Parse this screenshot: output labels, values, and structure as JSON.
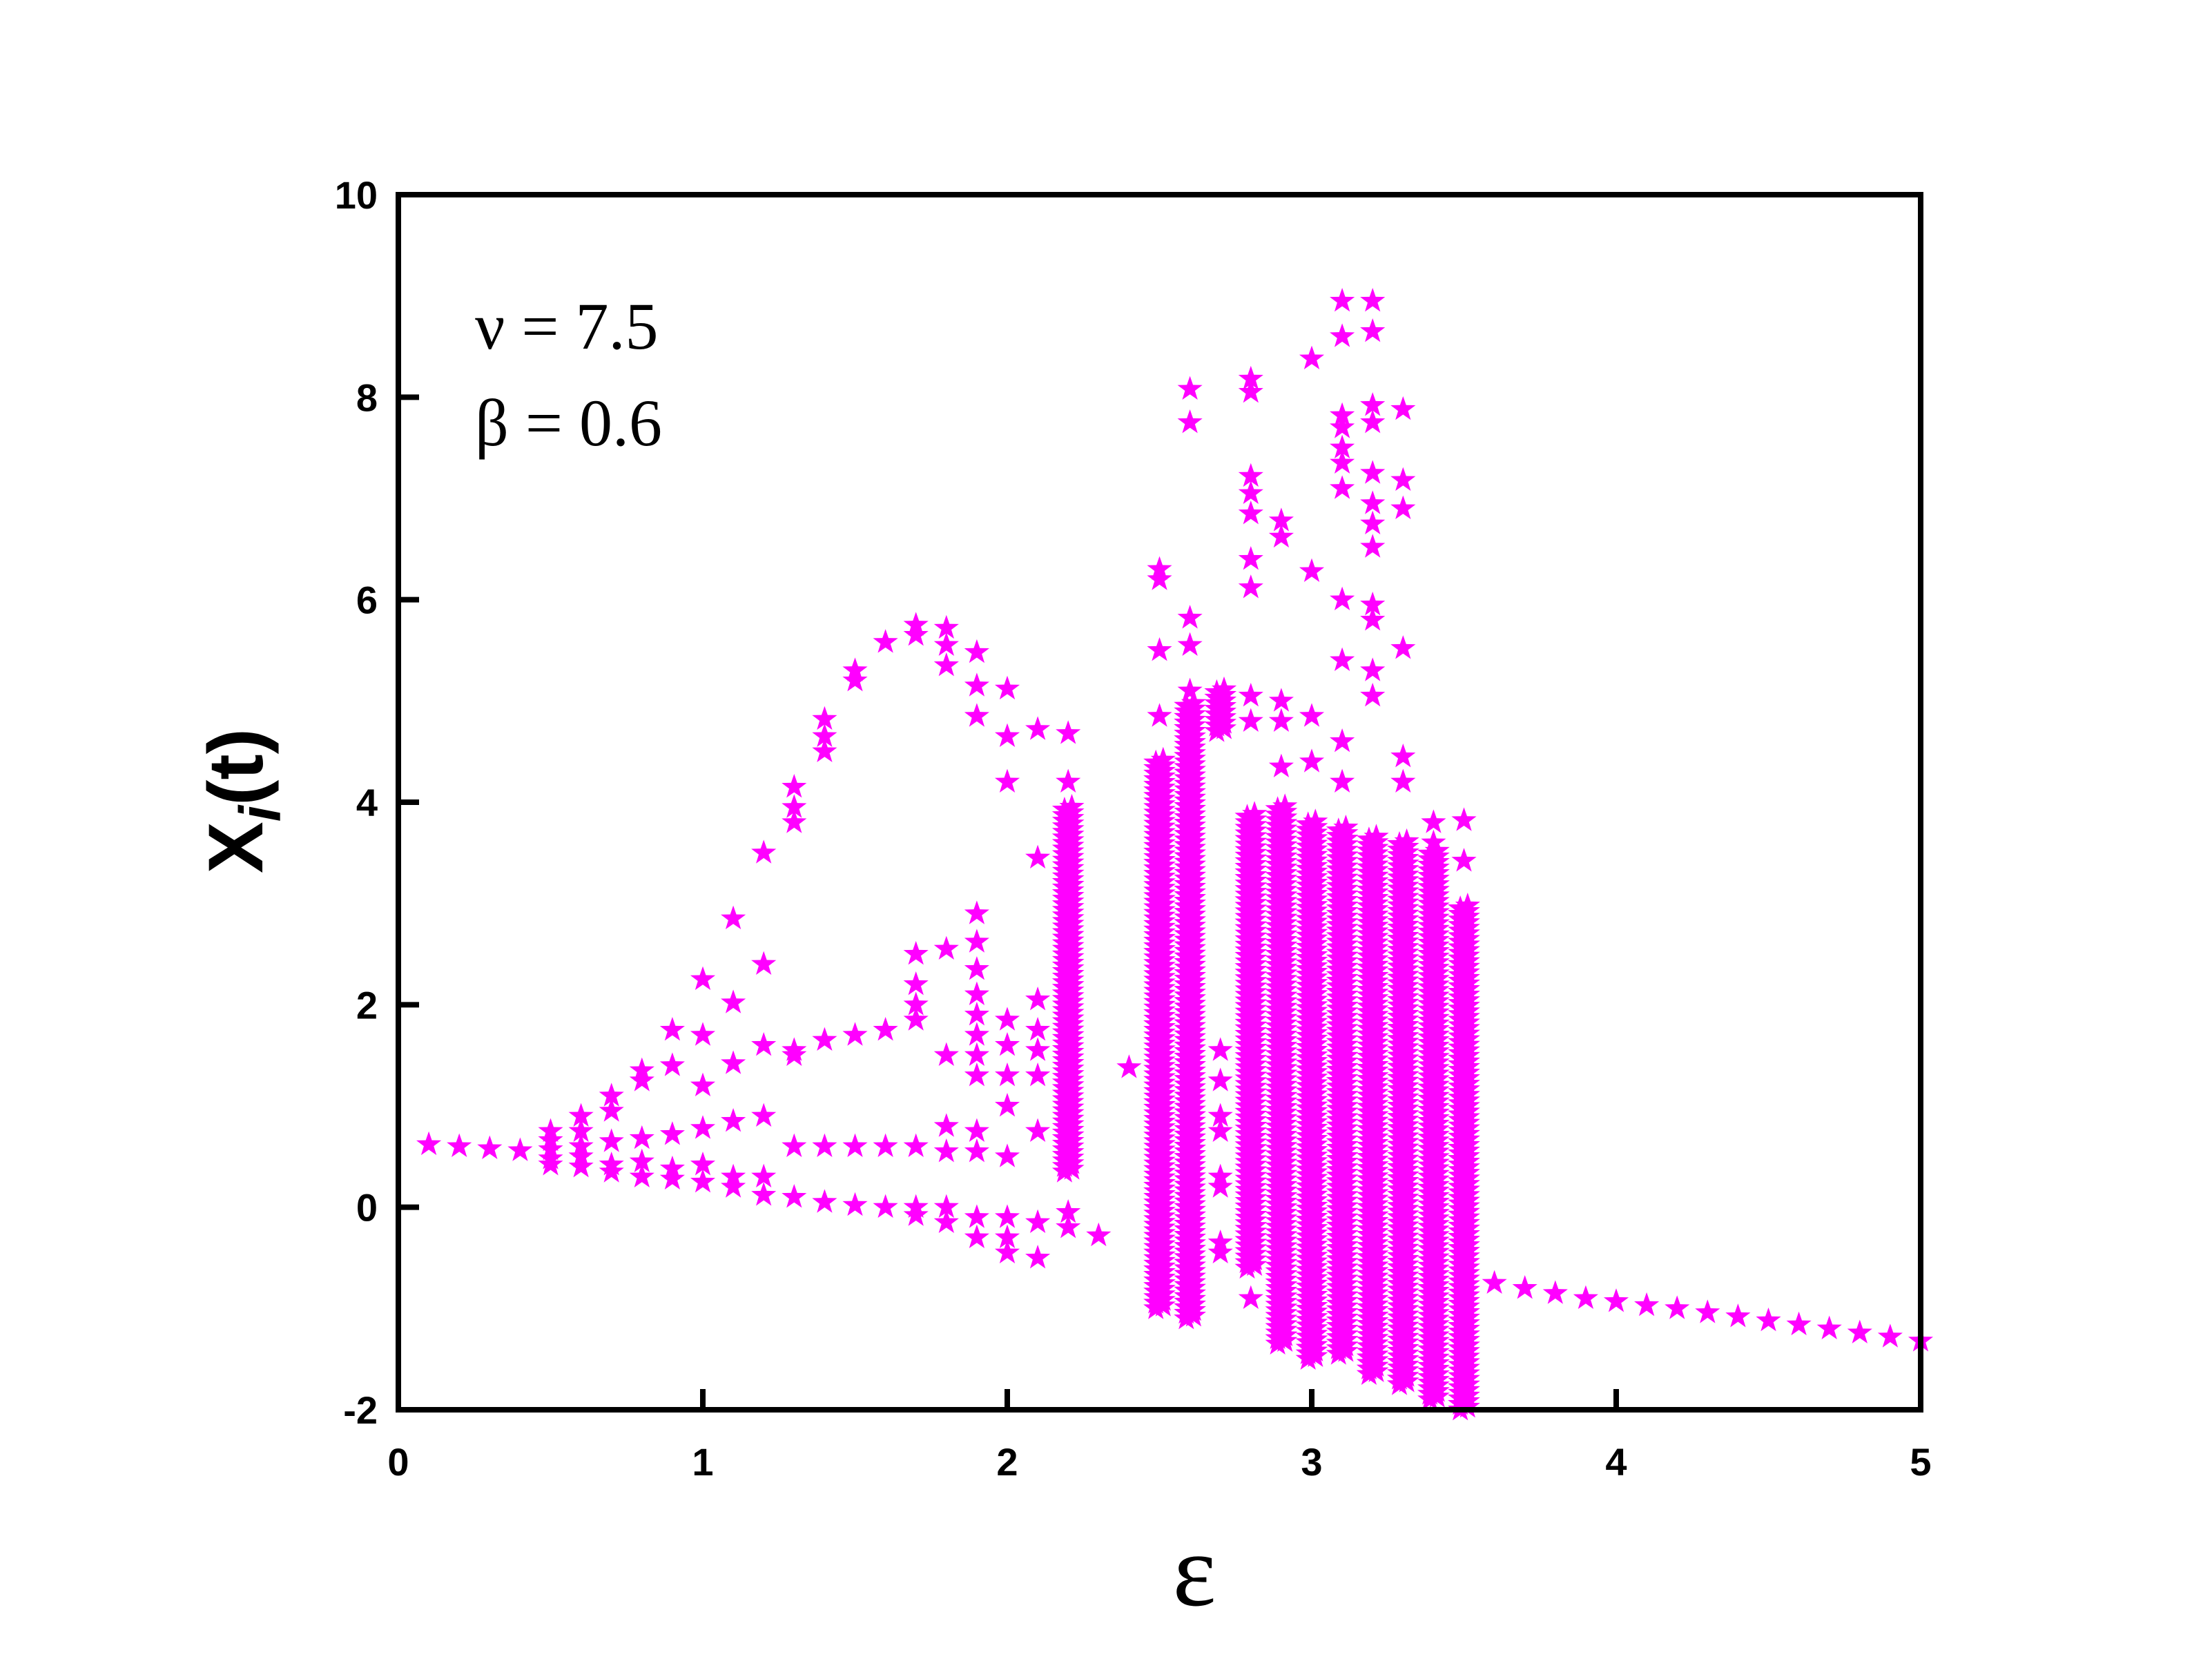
{
  "chart_data": {
    "type": "scatter",
    "marker": "star",
    "marker_color": "#ff00ff",
    "xlabel": "ε",
    "ylabel": "X",
    "ylabel_sub": "i",
    "ylabel_suffix": "(t)",
    "xlim": [
      0,
      5
    ],
    "ylim": [
      -2,
      10
    ],
    "xticks": [
      "0",
      "1",
      "2",
      "3",
      "4",
      "5"
    ],
    "yticks": [
      "-2",
      "0",
      "2",
      "4",
      "6",
      "8",
      "10"
    ],
    "annotations": [
      "ν = 7.5",
      "β = 0.6"
    ],
    "grid": false,
    "discrete_points": [
      [
        0.1,
        0.62
      ],
      [
        0.2,
        0.6
      ],
      [
        0.3,
        0.58
      ],
      [
        0.4,
        0.56
      ],
      [
        0.5,
        0.75
      ],
      [
        0.5,
        0.66
      ],
      [
        0.5,
        0.57
      ],
      [
        0.5,
        0.48
      ],
      [
        0.5,
        0.42
      ],
      [
        0.6,
        0.9
      ],
      [
        0.6,
        0.75
      ],
      [
        0.6,
        0.6
      ],
      [
        0.6,
        0.5
      ],
      [
        0.6,
        0.4
      ],
      [
        0.7,
        1.1
      ],
      [
        0.7,
        0.95
      ],
      [
        0.7,
        0.65
      ],
      [
        0.7,
        0.42
      ],
      [
        0.7,
        0.35
      ],
      [
        0.8,
        1.35
      ],
      [
        0.8,
        1.25
      ],
      [
        0.8,
        0.68
      ],
      [
        0.8,
        0.45
      ],
      [
        0.8,
        0.3
      ],
      [
        0.9,
        1.75
      ],
      [
        0.9,
        1.4
      ],
      [
        0.9,
        0.72
      ],
      [
        0.9,
        0.38
      ],
      [
        0.9,
        0.28
      ],
      [
        1.0,
        2.25
      ],
      [
        1.0,
        1.7
      ],
      [
        1.0,
        1.2
      ],
      [
        1.0,
        0.78
      ],
      [
        1.0,
        0.42
      ],
      [
        1.0,
        0.25
      ],
      [
        1.1,
        2.85
      ],
      [
        1.1,
        2.02
      ],
      [
        1.1,
        1.42
      ],
      [
        1.1,
        0.85
      ],
      [
        1.1,
        0.3
      ],
      [
        1.1,
        0.2
      ],
      [
        1.2,
        3.5
      ],
      [
        1.2,
        2.4
      ],
      [
        1.2,
        1.6
      ],
      [
        1.2,
        0.9
      ],
      [
        1.2,
        0.3
      ],
      [
        1.2,
        0.12
      ],
      [
        1.3,
        4.15
      ],
      [
        1.3,
        3.95
      ],
      [
        1.3,
        3.8
      ],
      [
        1.3,
        1.55
      ],
      [
        1.3,
        1.5
      ],
      [
        1.3,
        0.6
      ],
      [
        1.3,
        0.1
      ],
      [
        1.4,
        4.82
      ],
      [
        1.4,
        4.65
      ],
      [
        1.4,
        4.5
      ],
      [
        1.4,
        1.65
      ],
      [
        1.4,
        0.6
      ],
      [
        1.4,
        0.05
      ],
      [
        1.5,
        5.3
      ],
      [
        1.5,
        5.2
      ],
      [
        1.5,
        1.7
      ],
      [
        1.5,
        0.6
      ],
      [
        1.5,
        0.02
      ],
      [
        1.6,
        5.58
      ],
      [
        1.6,
        1.75
      ],
      [
        1.6,
        0.6
      ],
      [
        1.6,
        0.0
      ],
      [
        1.7,
        5.75
      ],
      [
        1.7,
        5.65
      ],
      [
        1.7,
        2.5
      ],
      [
        1.7,
        2.2
      ],
      [
        1.7,
        2.0
      ],
      [
        1.7,
        1.85
      ],
      [
        1.7,
        0.6
      ],
      [
        1.7,
        0.0
      ],
      [
        1.7,
        -0.08
      ],
      [
        1.8,
        5.72
      ],
      [
        1.8,
        5.55
      ],
      [
        1.8,
        5.35
      ],
      [
        1.8,
        2.55
      ],
      [
        1.8,
        1.5
      ],
      [
        1.8,
        0.8
      ],
      [
        1.8,
        0.55
      ],
      [
        1.8,
        0.0
      ],
      [
        1.8,
        -0.15
      ],
      [
        1.9,
        5.48
      ],
      [
        1.9,
        5.15
      ],
      [
        1.9,
        4.85
      ],
      [
        1.9,
        2.9
      ],
      [
        1.9,
        2.62
      ],
      [
        1.9,
        2.35
      ],
      [
        1.9,
        2.1
      ],
      [
        1.9,
        1.9
      ],
      [
        1.9,
        1.7
      ],
      [
        1.9,
        1.5
      ],
      [
        1.9,
        1.3
      ],
      [
        1.9,
        0.75
      ],
      [
        1.9,
        0.55
      ],
      [
        1.9,
        -0.1
      ],
      [
        1.9,
        -0.3
      ],
      [
        2.0,
        5.12
      ],
      [
        2.0,
        4.65
      ],
      [
        2.0,
        4.2
      ],
      [
        2.0,
        1.85
      ],
      [
        2.0,
        1.6
      ],
      [
        2.0,
        1.3
      ],
      [
        2.0,
        1.0
      ],
      [
        2.0,
        0.5
      ],
      [
        2.0,
        -0.1
      ],
      [
        2.0,
        -0.3
      ],
      [
        2.0,
        -0.45
      ],
      [
        2.1,
        4.72
      ],
      [
        2.1,
        3.45
      ],
      [
        2.1,
        2.05
      ],
      [
        2.1,
        1.75
      ],
      [
        2.1,
        1.55
      ],
      [
        2.1,
        1.3
      ],
      [
        2.1,
        0.75
      ],
      [
        2.1,
        -0.15
      ],
      [
        2.1,
        -0.5
      ],
      [
        2.2,
        4.68
      ],
      [
        2.2,
        4.2
      ],
      [
        2.2,
        -0.05
      ],
      [
        2.2,
        -0.2
      ],
      [
        2.3,
        -0.28
      ],
      [
        2.4,
        1.38
      ],
      [
        2.5,
        6.3
      ],
      [
        2.5,
        6.2
      ],
      [
        2.5,
        5.5
      ],
      [
        2.5,
        4.85
      ],
      [
        2.6,
        8.08
      ],
      [
        2.6,
        7.75
      ],
      [
        2.6,
        5.82
      ],
      [
        2.6,
        5.55
      ],
      [
        2.6,
        5.1
      ],
      [
        2.7,
        5.0
      ],
      [
        2.7,
        1.55
      ],
      [
        2.7,
        1.25
      ],
      [
        2.7,
        0.9
      ],
      [
        2.7,
        0.75
      ],
      [
        2.7,
        0.3
      ],
      [
        2.7,
        0.2
      ],
      [
        2.7,
        -0.35
      ],
      [
        2.7,
        -0.45
      ],
      [
        2.8,
        8.18
      ],
      [
        2.8,
        8.05
      ],
      [
        2.8,
        7.22
      ],
      [
        2.8,
        7.05
      ],
      [
        2.8,
        6.85
      ],
      [
        2.8,
        6.4
      ],
      [
        2.8,
        6.12
      ],
      [
        2.8,
        5.05
      ],
      [
        2.8,
        4.8
      ],
      [
        2.8,
        -0.9
      ],
      [
        2.9,
        6.78
      ],
      [
        2.9,
        6.62
      ],
      [
        2.9,
        5.0
      ],
      [
        2.9,
        4.8
      ],
      [
        2.9,
        4.35
      ],
      [
        3.0,
        8.38
      ],
      [
        3.0,
        6.28
      ],
      [
        3.0,
        4.85
      ],
      [
        3.0,
        4.4
      ],
      [
        3.1,
        8.95
      ],
      [
        3.1,
        8.6
      ],
      [
        3.1,
        7.82
      ],
      [
        3.1,
        7.7
      ],
      [
        3.1,
        7.5
      ],
      [
        3.1,
        7.35
      ],
      [
        3.1,
        7.1
      ],
      [
        3.1,
        6.0
      ],
      [
        3.1,
        5.4
      ],
      [
        3.1,
        4.6
      ],
      [
        3.1,
        4.2
      ],
      [
        3.2,
        8.95
      ],
      [
        3.2,
        8.65
      ],
      [
        3.2,
        7.92
      ],
      [
        3.2,
        7.75
      ],
      [
        3.2,
        7.25
      ],
      [
        3.2,
        6.95
      ],
      [
        3.2,
        6.75
      ],
      [
        3.2,
        6.52
      ],
      [
        3.2,
        5.95
      ],
      [
        3.2,
        5.8
      ],
      [
        3.2,
        5.3
      ],
      [
        3.2,
        5.05
      ],
      [
        3.3,
        7.88
      ],
      [
        3.3,
        7.18
      ],
      [
        3.3,
        6.9
      ],
      [
        3.3,
        5.52
      ],
      [
        3.3,
        4.45
      ],
      [
        3.3,
        4.2
      ],
      [
        3.4,
        3.8
      ],
      [
        3.4,
        3.6
      ],
      [
        3.5,
        3.82
      ],
      [
        3.5,
        3.42
      ],
      [
        3.6,
        -0.75
      ],
      [
        3.7,
        -0.8
      ],
      [
        3.8,
        -0.85
      ],
      [
        3.9,
        -0.9
      ],
      [
        4.0,
        -0.93
      ],
      [
        4.1,
        -0.97
      ],
      [
        4.2,
        -1.0
      ],
      [
        4.3,
        -1.04
      ],
      [
        4.4,
        -1.08
      ],
      [
        4.5,
        -1.12
      ],
      [
        4.6,
        -1.16
      ],
      [
        4.7,
        -1.2
      ],
      [
        4.8,
        -1.24
      ],
      [
        4.9,
        -1.28
      ],
      [
        5.0,
        -1.32
      ]
    ],
    "dense_columns": [
      {
        "x": 2.2,
        "y_min": 0.35,
        "y_max": 3.95
      },
      {
        "x": 2.5,
        "y_min": -1.0,
        "y_max": 4.4
      },
      {
        "x": 2.6,
        "y_min": -1.1,
        "y_max": 4.95
      },
      {
        "x": 2.7,
        "y_min": 4.7,
        "y_max": 5.1
      },
      {
        "x": 2.8,
        "y_min": -0.6,
        "y_max": 3.9
      },
      {
        "x": 2.9,
        "y_min": -1.35,
        "y_max": 3.95
      },
      {
        "x": 3.0,
        "y_min": -1.5,
        "y_max": 3.8
      },
      {
        "x": 3.1,
        "y_min": -1.45,
        "y_max": 3.75
      },
      {
        "x": 3.2,
        "y_min": -1.65,
        "y_max": 3.65
      },
      {
        "x": 3.3,
        "y_min": -1.75,
        "y_max": 3.6
      },
      {
        "x": 3.4,
        "y_min": -1.9,
        "y_max": 3.5
      },
      {
        "x": 3.5,
        "y_min": -2.0,
        "y_max": 3.0
      }
    ]
  }
}
